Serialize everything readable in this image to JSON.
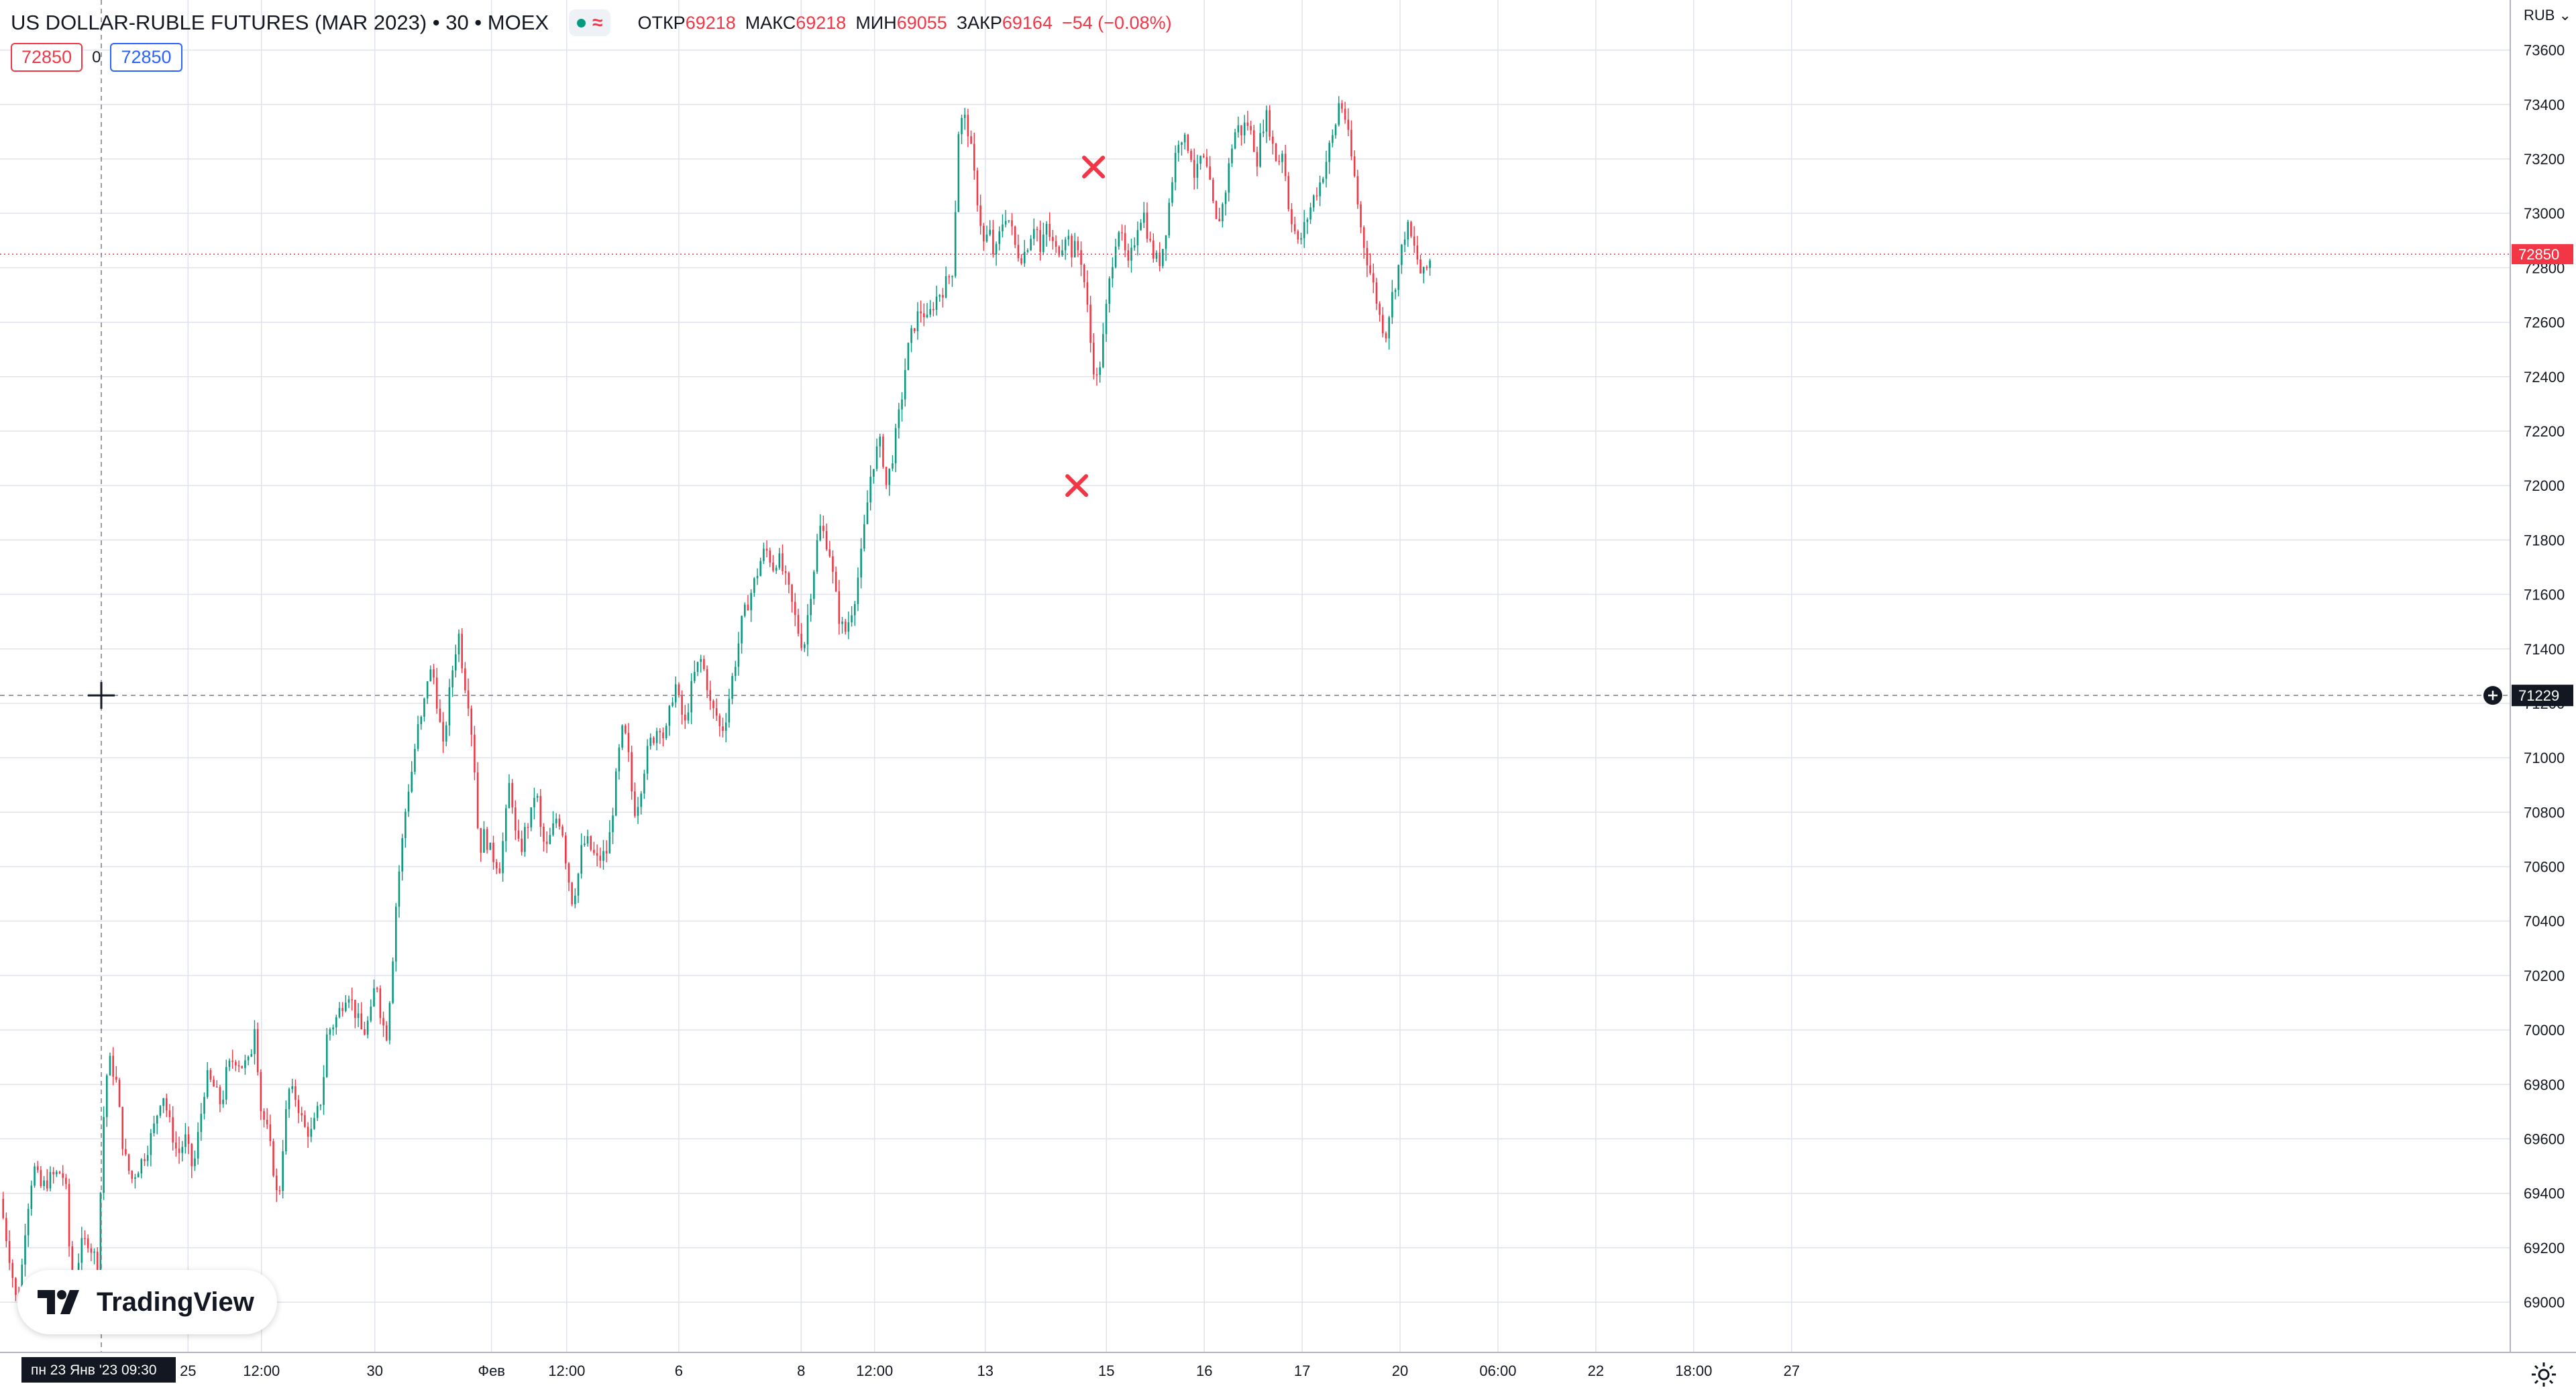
{
  "header": {
    "title": "US DOLLAR-RUBLE FUTURES (MAR 2023) • 30 • MOEX",
    "open_label": "ОТКР",
    "open": "69218",
    "high_label": "МАКС",
    "high": "69218",
    "low_label": "МИН",
    "low": "69055",
    "close_label": "ЗАКР",
    "close": "69164",
    "change": "−54 (−0.08%)"
  },
  "trade": {
    "sell": "72850",
    "spread": "0",
    "buy": "72850"
  },
  "currency": "RUB ⌄",
  "crosshair_date": "пн 23 Янв '23   09:30",
  "brand": "TradingView",
  "colors": {
    "up": "#089981",
    "down": "#f23645",
    "grid": "#e0e3eb",
    "text": "#131722"
  },
  "chart_data": {
    "type": "candlestick",
    "symbol": "US DOLLAR-RUBLE FUTURES (MAR 2023)",
    "interval": "30",
    "exchange": "MOEX",
    "ylim": [
      68850,
      73700
    ],
    "yticks": [
      69000,
      69200,
      69400,
      69600,
      69800,
      70000,
      70200,
      70400,
      70600,
      70800,
      71000,
      71200,
      71400,
      71600,
      71800,
      72000,
      72200,
      72400,
      72600,
      72800,
      73000,
      73200,
      73400,
      73600
    ],
    "xticks": [
      {
        "label": "25",
        "pos": 0.073
      },
      {
        "label": "12:00",
        "pos": 0.1015
      },
      {
        "label": "30",
        "pos": 0.1455
      },
      {
        "label": "Фев",
        "pos": 0.1908
      },
      {
        "label": "12:00",
        "pos": 0.22
      },
      {
        "label": "6",
        "pos": 0.2635
      },
      {
        "label": "8",
        "pos": 0.311
      },
      {
        "label": "12:00",
        "pos": 0.3395
      },
      {
        "label": "13",
        "pos": 0.3825
      },
      {
        "label": "15",
        "pos": 0.4295
      },
      {
        "label": "16",
        "pos": 0.4675
      },
      {
        "label": "17",
        "pos": 0.5055
      },
      {
        "label": "20",
        "pos": 0.5435
      },
      {
        "label": "06:00",
        "pos": 0.5815
      },
      {
        "label": "22",
        "pos": 0.6195
      },
      {
        "label": "18:00",
        "pos": 0.6575
      },
      {
        "label": "27",
        "pos": 0.6955
      }
    ],
    "last_price": 72850,
    "crosshair_price": 71229,
    "markers": [
      {
        "pos": 0.4245,
        "price": 73170,
        "shape": "cross"
      },
      {
        "pos": 0.418,
        "price": 72000,
        "shape": "cross"
      }
    ],
    "close_path": [
      [
        0.0,
        69380
      ],
      [
        0.004,
        69150
      ],
      [
        0.007,
        68960
      ],
      [
        0.01,
        69300
      ],
      [
        0.013,
        69500
      ],
      [
        0.016,
        69420
      ],
      [
        0.02,
        69460
      ],
      [
        0.024,
        69480
      ],
      [
        0.026,
        69390
      ],
      [
        0.028,
        68950
      ],
      [
        0.031,
        69200
      ],
      [
        0.034,
        69230
      ],
      [
        0.038,
        69140
      ],
      [
        0.04,
        69650
      ],
      [
        0.042,
        69900
      ],
      [
        0.045,
        69820
      ],
      [
        0.048,
        69550
      ],
      [
        0.051,
        69450
      ],
      [
        0.054,
        69500
      ],
      [
        0.057,
        69560
      ],
      [
        0.06,
        69650
      ],
      [
        0.063,
        69780
      ],
      [
        0.066,
        69650
      ],
      [
        0.069,
        69540
      ],
      [
        0.072,
        69600
      ],
      [
        0.075,
        69480
      ],
      [
        0.077,
        69620
      ],
      [
        0.08,
        69830
      ],
      [
        0.083,
        69790
      ],
      [
        0.086,
        69720
      ],
      [
        0.088,
        69850
      ],
      [
        0.091,
        69900
      ],
      [
        0.094,
        69870
      ],
      [
        0.097,
        69880
      ],
      [
        0.099,
        70040
      ],
      [
        0.101,
        69720
      ],
      [
        0.104,
        69620
      ],
      [
        0.106,
        69500
      ],
      [
        0.108,
        69350
      ],
      [
        0.11,
        69600
      ],
      [
        0.112,
        69780
      ],
      [
        0.115,
        69750
      ],
      [
        0.118,
        69640
      ],
      [
        0.121,
        69620
      ],
      [
        0.123,
        69690
      ],
      [
        0.125,
        69760
      ],
      [
        0.127,
        69990
      ],
      [
        0.13,
        70030
      ],
      [
        0.133,
        70100
      ],
      [
        0.135,
        70150
      ],
      [
        0.138,
        70060
      ],
      [
        0.141,
        69980
      ],
      [
        0.144,
        70060
      ],
      [
        0.146,
        70200
      ],
      [
        0.148,
        70040
      ],
      [
        0.15,
        69980
      ],
      [
        0.152,
        70200
      ],
      [
        0.154,
        70500
      ],
      [
        0.156,
        70680
      ],
      [
        0.158,
        70860
      ],
      [
        0.16,
        70960
      ],
      [
        0.162,
        71100
      ],
      [
        0.164,
        71150
      ],
      [
        0.166,
        71300
      ],
      [
        0.168,
        71320
      ],
      [
        0.17,
        71180
      ],
      [
        0.172,
        71030
      ],
      [
        0.174,
        71200
      ],
      [
        0.176,
        71350
      ],
      [
        0.178,
        71460
      ],
      [
        0.18,
        71300
      ],
      [
        0.182,
        71200
      ],
      [
        0.184,
        71000
      ],
      [
        0.186,
        70650
      ],
      [
        0.188,
        70720
      ],
      [
        0.191,
        70640
      ],
      [
        0.194,
        70600
      ],
      [
        0.196,
        70750
      ],
      [
        0.198,
        70930
      ],
      [
        0.2,
        70720
      ],
      [
        0.202,
        70650
      ],
      [
        0.204,
        70740
      ],
      [
        0.206,
        70780
      ],
      [
        0.208,
        70900
      ],
      [
        0.21,
        70720
      ],
      [
        0.212,
        70660
      ],
      [
        0.214,
        70720
      ],
      [
        0.216,
        70780
      ],
      [
        0.218,
        70760
      ],
      [
        0.22,
        70600
      ],
      [
        0.222,
        70480
      ],
      [
        0.224,
        70540
      ],
      [
        0.226,
        70680
      ],
      [
        0.228,
        70690
      ],
      [
        0.23,
        70650
      ],
      [
        0.232,
        70620
      ],
      [
        0.234,
        70640
      ],
      [
        0.236,
        70660
      ],
      [
        0.238,
        70820
      ],
      [
        0.24,
        71000
      ],
      [
        0.242,
        71120
      ],
      [
        0.244,
        71000
      ],
      [
        0.246,
        70800
      ],
      [
        0.248,
        70850
      ],
      [
        0.25,
        70960
      ],
      [
        0.252,
        71050
      ],
      [
        0.254,
        71080
      ],
      [
        0.256,
        71130
      ],
      [
        0.258,
        71060
      ],
      [
        0.26,
        71170
      ],
      [
        0.262,
        71280
      ],
      [
        0.264,
        71180
      ],
      [
        0.266,
        71120
      ],
      [
        0.268,
        71240
      ],
      [
        0.27,
        71320
      ],
      [
        0.272,
        71360
      ],
      [
        0.274,
        71300
      ],
      [
        0.276,
        71180
      ],
      [
        0.278,
        71160
      ],
      [
        0.28,
        71090
      ],
      [
        0.282,
        71160
      ],
      [
        0.284,
        71280
      ],
      [
        0.286,
        71380
      ],
      [
        0.288,
        71500
      ],
      [
        0.29,
        71560
      ],
      [
        0.292,
        71620
      ],
      [
        0.294,
        71680
      ],
      [
        0.296,
        71750
      ],
      [
        0.298,
        71760
      ],
      [
        0.3,
        71700
      ],
      [
        0.302,
        71740
      ],
      [
        0.304,
        71680
      ],
      [
        0.306,
        71620
      ],
      [
        0.308,
        71540
      ],
      [
        0.31,
        71460
      ],
      [
        0.312,
        71400
      ],
      [
        0.314,
        71560
      ],
      [
        0.316,
        71700
      ],
      [
        0.318,
        71850
      ],
      [
        0.32,
        71820
      ],
      [
        0.322,
        71760
      ],
      [
        0.324,
        71620
      ],
      [
        0.326,
        71500
      ],
      [
        0.328,
        71460
      ],
      [
        0.33,
        71520
      ],
      [
        0.332,
        71600
      ],
      [
        0.334,
        71720
      ],
      [
        0.336,
        71880
      ],
      [
        0.338,
        72040
      ],
      [
        0.34,
        72120
      ],
      [
        0.342,
        72160
      ],
      [
        0.344,
        72000
      ],
      [
        0.346,
        72080
      ],
      [
        0.348,
        72200
      ],
      [
        0.35,
        72320
      ],
      [
        0.352,
        72480
      ],
      [
        0.354,
        72560
      ],
      [
        0.356,
        72620
      ],
      [
        0.358,
        72650
      ],
      [
        0.36,
        72600
      ],
      [
        0.362,
        72660
      ],
      [
        0.364,
        72700
      ],
      [
        0.366,
        72720
      ],
      [
        0.368,
        72760
      ],
      [
        0.37,
        72800
      ],
      [
        0.372,
        73300
      ],
      [
        0.374,
        73360
      ],
      [
        0.376,
        73300
      ],
      [
        0.378,
        73150
      ],
      [
        0.38,
        73010
      ],
      [
        0.382,
        72880
      ],
      [
        0.384,
        72940
      ],
      [
        0.386,
        72830
      ],
      [
        0.388,
        72920
      ],
      [
        0.39,
        73000
      ],
      [
        0.392,
        72970
      ],
      [
        0.394,
        72880
      ],
      [
        0.396,
        72840
      ],
      [
        0.398,
        72860
      ],
      [
        0.4,
        72920
      ],
      [
        0.402,
        72980
      ],
      [
        0.404,
        72840
      ],
      [
        0.406,
        72960
      ],
      [
        0.408,
        72900
      ],
      [
        0.41,
        72860
      ],
      [
        0.412,
        72880
      ],
      [
        0.414,
        72940
      ],
      [
        0.416,
        72860
      ],
      [
        0.418,
        72880
      ],
      [
        0.42,
        72820
      ],
      [
        0.422,
        72660
      ],
      [
        0.424,
        72460
      ],
      [
        0.426,
        72380
      ],
      [
        0.428,
        72520
      ],
      [
        0.43,
        72700
      ],
      [
        0.432,
        72840
      ],
      [
        0.434,
        72960
      ],
      [
        0.436,
        72880
      ],
      [
        0.438,
        72800
      ],
      [
        0.44,
        72880
      ],
      [
        0.442,
        72980
      ],
      [
        0.444,
        73000
      ],
      [
        0.446,
        72900
      ],
      [
        0.448,
        72840
      ],
      [
        0.45,
        72820
      ],
      [
        0.452,
        72900
      ],
      [
        0.454,
        73050
      ],
      [
        0.456,
        73200
      ],
      [
        0.458,
        73300
      ],
      [
        0.46,
        73260
      ],
      [
        0.462,
        73240
      ],
      [
        0.464,
        73120
      ],
      [
        0.466,
        73200
      ],
      [
        0.468,
        73180
      ],
      [
        0.47,
        73080
      ],
      [
        0.472,
        72960
      ],
      [
        0.474,
        73000
      ],
      [
        0.476,
        73100
      ],
      [
        0.478,
        73240
      ],
      [
        0.48,
        73320
      ],
      [
        0.482,
        73300
      ],
      [
        0.484,
        73340
      ],
      [
        0.486,
        73280
      ],
      [
        0.488,
        73200
      ],
      [
        0.49,
        73320
      ],
      [
        0.492,
        73360
      ],
      [
        0.494,
        73250
      ],
      [
        0.496,
        73180
      ],
      [
        0.498,
        73240
      ],
      [
        0.5,
        73040
      ],
      [
        0.502,
        72960
      ],
      [
        0.504,
        72880
      ],
      [
        0.506,
        72940
      ],
      [
        0.508,
        73000
      ],
      [
        0.51,
        73060
      ],
      [
        0.512,
        73100
      ],
      [
        0.514,
        73160
      ],
      [
        0.516,
        73240
      ],
      [
        0.518,
        73300
      ],
      [
        0.52,
        73420
      ],
      [
        0.522,
        73360
      ],
      [
        0.524,
        73240
      ],
      [
        0.526,
        73120
      ],
      [
        0.528,
        72960
      ],
      [
        0.53,
        72860
      ],
      [
        0.532,
        72780
      ],
      [
        0.534,
        72700
      ],
      [
        0.536,
        72600
      ],
      [
        0.538,
        72560
      ],
      [
        0.54,
        72680
      ],
      [
        0.542,
        72760
      ],
      [
        0.544,
        72860
      ],
      [
        0.546,
        72960
      ],
      [
        0.548,
        72900
      ],
      [
        0.55,
        72840
      ],
      [
        0.552,
        72760
      ],
      [
        0.554,
        72800
      ],
      [
        0.556,
        72850
      ]
    ]
  }
}
